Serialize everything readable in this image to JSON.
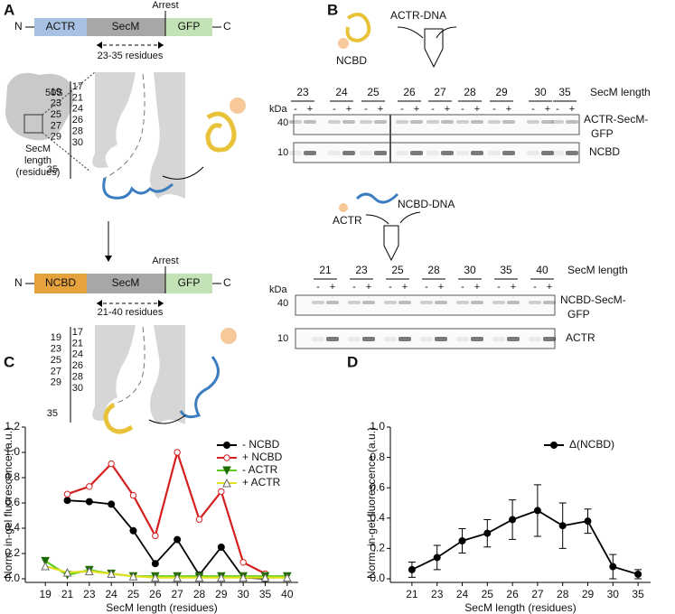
{
  "panel_a": {
    "label": "A",
    "construct_top": {
      "n_term": "N",
      "domain": "ACTR",
      "linker": "SecM",
      "reporter": "GFP",
      "c_term": "C",
      "arrest": "Arrest",
      "range": "23-35 residues"
    },
    "ribosome": "50S",
    "length_label": [
      "SecM",
      "length",
      "(residues)"
    ],
    "lengths_top": [
      17,
      19,
      21,
      23,
      24,
      25,
      26,
      27,
      28,
      29,
      30,
      35
    ],
    "construct_bottom": {
      "n_term": "N",
      "domain": "NCBD",
      "linker": "SecM",
      "reporter": "GFP",
      "c_term": "C",
      "arrest": "Arrest",
      "range": "21-40 residues"
    },
    "lengths_bottom": [
      17,
      19,
      21,
      23,
      24,
      25,
      26,
      27,
      28,
      29,
      30,
      35
    ]
  },
  "panel_b": {
    "label": "B",
    "top": {
      "dna": "ACTR-DNA",
      "protein": "NCBD",
      "lanes": [
        "23",
        "24",
        "25",
        "26",
        "27",
        "28",
        "29",
        "30",
        "35"
      ],
      "axis": "SecM length",
      "signs": [
        "-",
        "+"
      ],
      "unit": "kDa",
      "marker_high": "40",
      "marker_low": "10",
      "band_high": [
        "ACTR-SecM-",
        "GFP"
      ],
      "band_low": "NCBD"
    },
    "bottom": {
      "dna": "NCBD-DNA",
      "protein": "ACTR",
      "lanes": [
        "21",
        "23",
        "25",
        "28",
        "30",
        "35",
        "40"
      ],
      "axis": "SecM length",
      "signs": [
        "-",
        "+"
      ],
      "unit": "kDa",
      "marker_high": "40",
      "marker_low": "10",
      "band_high": [
        "NCBD-SecM-",
        "GFP"
      ],
      "band_low": "ACTR"
    }
  },
  "chart_data": [
    {
      "type": "line",
      "label": "C",
      "x_label": "SecM length (residues)",
      "y_label": "Norm. in-gel fluorescence (a.u.)",
      "categories": [
        "19",
        "21",
        "23",
        "24",
        "25",
        "26",
        "27",
        "28",
        "29",
        "30",
        "35",
        "40"
      ],
      "ylim": [
        0,
        1.2
      ],
      "yticks": [
        {
          "value": 0,
          "label": "0.0"
        },
        0.2,
        0.4,
        0.6,
        0.8,
        {
          "value": 1,
          "label": "1.0"
        },
        1.2
      ],
      "legend": "upper right",
      "series": [
        {
          "name": "- NCBD",
          "color": "#000000",
          "marker": "circle",
          "values": [
            null,
            0.62,
            0.61,
            0.59,
            0.38,
            0.12,
            0.31,
            0.03,
            0.25,
            0.01,
            0.0,
            null
          ]
        },
        {
          "name": "+ NCBD",
          "color": "#d62020",
          "marker": "circle-open",
          "values": [
            null,
            0.67,
            0.73,
            0.91,
            0.66,
            0.34,
            1.0,
            0.47,
            0.69,
            0.13,
            0.04,
            null
          ]
        },
        {
          "name": "- ACTR",
          "color": "#5ccc1a",
          "marker": "triangle-down",
          "values": [
            0.14,
            0.03,
            0.07,
            0.04,
            0.02,
            0.02,
            0.02,
            0.02,
            0.02,
            0.02,
            0.02,
            0.02
          ]
        },
        {
          "name": "+ ACTR",
          "color": "#e0e020",
          "marker": "triangle-up",
          "values": [
            0.1,
            0.05,
            0.06,
            0.04,
            0.02,
            0.01,
            0.01,
            0.01,
            0.01,
            0.01,
            0.01,
            0.01
          ]
        }
      ]
    },
    {
      "type": "line",
      "label": "D",
      "x_label": "SecM length (residues)",
      "y_label": "Norm. in-gel fluorescence (a.u.)",
      "categories": [
        "21",
        "23",
        "24",
        "25",
        "26",
        "27",
        "28",
        "29",
        "30",
        "35"
      ],
      "ylim": [
        0,
        1
      ],
      "yticks": [
        {
          "value": 0,
          "label": "0.0"
        },
        0.2,
        0.4,
        0.6,
        0.8,
        {
          "value": 1,
          "label": "1.0"
        }
      ],
      "legend": "upper right",
      "series": [
        {
          "name": "Δ(NCBD)",
          "color": "#000000",
          "marker": "circle",
          "values": [
            0.06,
            0.14,
            0.25,
            0.3,
            0.39,
            0.45,
            0.35,
            0.38,
            0.08,
            0.03
          ],
          "errors": [
            0.05,
            0.08,
            0.08,
            0.09,
            0.13,
            0.17,
            0.15,
            0.08,
            0.08,
            0.03
          ]
        }
      ]
    }
  ]
}
